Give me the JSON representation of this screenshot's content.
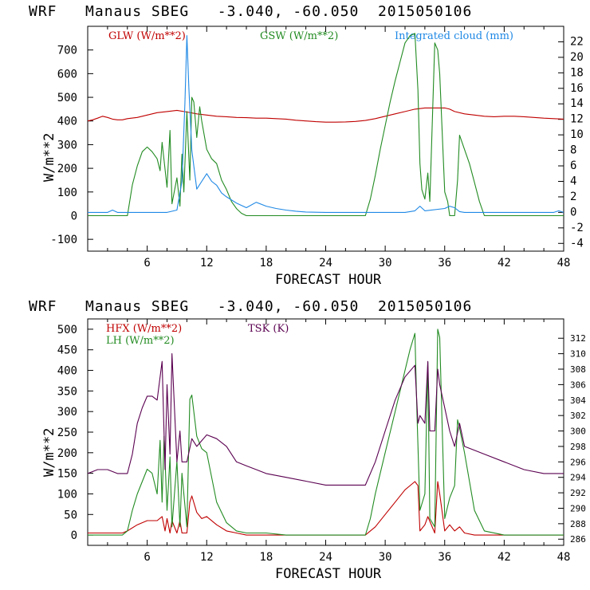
{
  "charts_header": "",
  "chart_data": [
    {
      "type": "line",
      "title": "WRF   Manaus SBEG   -3.040, -60.050  2015050106",
      "xlabel": "FORECAST HOUR",
      "ylabel": "W/m**2",
      "xlim": [
        0,
        48
      ],
      "ylim": [
        -150,
        800
      ],
      "y2lim": [
        -5,
        24
      ],
      "xticks": [
        6,
        12,
        18,
        24,
        30,
        36,
        42,
        48
      ],
      "yticks": [
        -100,
        0,
        100,
        200,
        300,
        400,
        500,
        600,
        700
      ],
      "y2ticks": [
        -4,
        -2,
        0,
        2,
        4,
        6,
        8,
        10,
        12,
        14,
        16,
        18,
        20,
        22
      ],
      "grid": false,
      "legend_position": "top",
      "colors": {
        "glw": "#c00000",
        "gsw": "#228b22",
        "cloud": "#1e88e5"
      },
      "series": [
        {
          "name": "GLW (W/m**2)",
          "axis": "left",
          "color": "#c00000",
          "x": [
            0,
            0.5,
            1,
            1.5,
            2,
            2.5,
            3,
            3.5,
            4,
            5,
            6,
            7,
            8,
            9,
            10,
            11,
            12,
            13,
            14,
            15,
            16,
            17,
            18,
            19,
            20,
            21,
            22,
            23,
            24,
            25,
            26,
            27,
            28,
            29,
            30,
            31,
            32,
            33,
            34,
            35,
            36,
            36.5,
            37,
            38,
            39,
            40,
            41,
            42,
            43,
            44,
            45,
            46,
            47,
            48
          ],
          "y": [
            400,
            405,
            412,
            420,
            415,
            408,
            405,
            405,
            410,
            415,
            425,
            435,
            440,
            445,
            438,
            430,
            425,
            420,
            418,
            415,
            414,
            412,
            412,
            410,
            408,
            403,
            400,
            397,
            395,
            395,
            396,
            398,
            402,
            410,
            420,
            430,
            440,
            450,
            455,
            455,
            455,
            450,
            440,
            430,
            425,
            420,
            418,
            420,
            420,
            418,
            415,
            412,
            410,
            408
          ]
        },
        {
          "name": "GSW (W/m**2)",
          "axis": "left",
          "color": "#228b22",
          "x": [
            0,
            3.5,
            4,
            4.5,
            5,
            5.5,
            6,
            6.5,
            7,
            7.3,
            7.5,
            8,
            8.3,
            8.5,
            9,
            9.3,
            9.5,
            9.7,
            10,
            10.3,
            10.5,
            10.7,
            11,
            11.3,
            11.5,
            12,
            12.5,
            13,
            13.5,
            14,
            14.5,
            15,
            15.5,
            16,
            16.5,
            17,
            28,
            28.5,
            29,
            29.5,
            30,
            30.5,
            31,
            31.5,
            32,
            32.5,
            33,
            33.3,
            33.5,
            33.7,
            34,
            34.3,
            34.5,
            35,
            35.3,
            35.5,
            36,
            36.3,
            36.5,
            37,
            37.3,
            37.5,
            38,
            38.5,
            39,
            39.5,
            40,
            48
          ],
          "y": [
            0,
            0,
            0,
            130,
            210,
            270,
            290,
            270,
            240,
            190,
            310,
            120,
            360,
            50,
            160,
            40,
            260,
            100,
            440,
            150,
            500,
            480,
            330,
            460,
            400,
            280,
            240,
            220,
            150,
            110,
            60,
            30,
            10,
            0,
            0,
            0,
            0,
            70,
            170,
            280,
            380,
            480,
            570,
            650,
            730,
            760,
            770,
            530,
            220,
            110,
            70,
            180,
            60,
            730,
            700,
            600,
            100,
            60,
            0,
            0,
            150,
            340,
            280,
            220,
            140,
            60,
            0,
            0
          ]
        },
        {
          "name": "Integrated cloud (mm)",
          "axis": "right",
          "color": "#1e88e5",
          "x": [
            0,
            2,
            2.5,
            3,
            8,
            9,
            9.5,
            9.8,
            10,
            10.2,
            10.5,
            11,
            11.5,
            12,
            12.5,
            13,
            13.5,
            14,
            15,
            16,
            17,
            18,
            19,
            20,
            21,
            22,
            24,
            32,
            33,
            33.5,
            34,
            36,
            36.5,
            37,
            37.5,
            38,
            47,
            47.5,
            48
          ],
          "y": [
            0,
            0,
            0.3,
            0,
            0,
            0.3,
            4,
            14,
            22.8,
            16,
            8,
            3,
            4,
            5,
            4,
            3.5,
            2.5,
            2,
            1.2,
            0.6,
            1.3,
            0.8,
            0.5,
            0.3,
            0.15,
            0.05,
            0,
            0,
            0.2,
            0.8,
            0.2,
            0.5,
            0.8,
            0.6,
            0.1,
            0,
            0,
            0.2,
            0
          ]
        }
      ]
    },
    {
      "type": "line",
      "title": "WRF   Manaus SBEG   -3.040, -60.050  2015050106",
      "xlabel": "FORECAST HOUR",
      "ylabel": "W/m**2",
      "xlim": [
        0,
        48
      ],
      "ylim": [
        -25,
        525
      ],
      "y2lim": [
        285.2,
        314.5
      ],
      "xticks": [
        6,
        12,
        18,
        24,
        30,
        36,
        42,
        48
      ],
      "yticks": [
        0,
        50,
        100,
        150,
        200,
        250,
        300,
        350,
        400,
        450,
        500
      ],
      "y2ticks": [
        286,
        288,
        290,
        292,
        294,
        296,
        298,
        300,
        302,
        304,
        306,
        308,
        310,
        312
      ],
      "grid": false,
      "legend_position": "top-left",
      "colors": {
        "hfx": "#c00000",
        "lh": "#228b22",
        "tsk": "#5a0050"
      },
      "series": [
        {
          "name": "HFX (W/m**2)",
          "axis": "left",
          "color": "#c00000",
          "x": [
            0,
            3.5,
            4,
            5,
            6,
            7,
            7.5,
            7.8,
            8,
            8.3,
            8.5,
            9,
            9.3,
            9.5,
            10,
            10.3,
            10.5,
            11,
            11.5,
            12,
            13,
            14,
            15,
            16,
            18,
            20,
            24,
            28,
            29,
            30,
            31,
            32,
            33,
            33.3,
            33.5,
            34,
            34.3,
            35,
            35.3,
            35.5,
            36,
            36.5,
            37,
            37.5,
            38,
            39,
            40,
            42,
            48
          ],
          "y": [
            5,
            5,
            10,
            25,
            35,
            35,
            45,
            10,
            40,
            5,
            35,
            5,
            35,
            5,
            5,
            80,
            95,
            55,
            40,
            45,
            25,
            10,
            5,
            0,
            0,
            0,
            0,
            0,
            20,
            50,
            80,
            110,
            130,
            120,
            10,
            25,
            45,
            5,
            130,
            100,
            10,
            25,
            10,
            20,
            5,
            0,
            0,
            0,
            0
          ]
        },
        {
          "name": "LH  (W/m**2)",
          "axis": "left",
          "color": "#228b22",
          "x": [
            0,
            3.5,
            4,
            4.5,
            5,
            5.5,
            6,
            6.5,
            7,
            7.3,
            7.5,
            7.7,
            8,
            8.3,
            8.5,
            9,
            9.3,
            9.5,
            10,
            10.3,
            10.5,
            11,
            11.5,
            12,
            12.5,
            13,
            14,
            15,
            16,
            18,
            20,
            24,
            28,
            28.5,
            29,
            30,
            31,
            32,
            32.5,
            33,
            33.2,
            33.5,
            34,
            34.3,
            34.5,
            35,
            35.3,
            35.5,
            36,
            36.3,
            36.5,
            37,
            37.3,
            37.5,
            38,
            39,
            40,
            42,
            48
          ],
          "y": [
            0,
            0,
            10,
            60,
            100,
            130,
            160,
            150,
            100,
            230,
            80,
            240,
            60,
            190,
            20,
            180,
            20,
            150,
            20,
            330,
            340,
            240,
            210,
            200,
            140,
            80,
            30,
            10,
            5,
            5,
            0,
            0,
            0,
            40,
            100,
            200,
            300,
            400,
            450,
            490,
            300,
            60,
            100,
            420,
            40,
            20,
            500,
            480,
            40,
            70,
            90,
            120,
            280,
            260,
            200,
            60,
            10,
            0,
            0
          ]
        },
        {
          "name": "TSK (K)",
          "axis": "right",
          "color": "#5a0050",
          "x": [
            0,
            1,
            2,
            3,
            4,
            4.5,
            5,
            5.5,
            6,
            6.5,
            7,
            7.5,
            7.8,
            8,
            8.3,
            8.5,
            9,
            9.3,
            9.5,
            10,
            10.5,
            11,
            12,
            13,
            14,
            15,
            16,
            17,
            18,
            20,
            22,
            24,
            26,
            28,
            29,
            30,
            31,
            32,
            33,
            33.3,
            33.5,
            34,
            34.3,
            34.5,
            35,
            35.3,
            35.5,
            36,
            36.5,
            37,
            37.5,
            38,
            39,
            40,
            42,
            44,
            46,
            48
          ],
          "y": [
            294.5,
            295,
            295,
            294.5,
            294.5,
            297,
            301,
            303,
            304.5,
            304.5,
            304,
            309,
            295,
            306,
            297,
            310,
            296,
            300,
            296,
            296,
            299,
            298,
            299.5,
            299,
            298,
            296,
            295.5,
            295,
            294.5,
            294,
            293.5,
            293,
            293,
            293,
            296,
            300,
            304,
            307,
            308.5,
            301,
            302,
            301,
            309,
            300,
            300,
            308,
            306,
            303,
            300,
            298,
            301,
            298,
            297.5,
            297,
            296,
            295,
            294.5,
            294.5
          ]
        }
      ]
    }
  ]
}
